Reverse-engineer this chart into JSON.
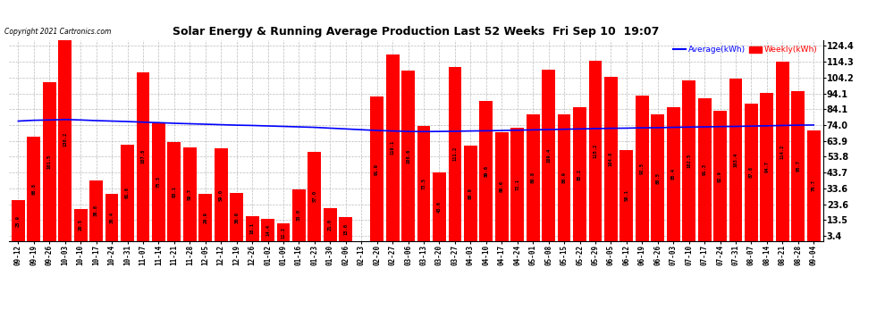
{
  "title": "Solar Energy & Running Average Production Last 52 Weeks  Fri Sep 10  19:07",
  "copyright": "Copyright 2021 Cartronics.com",
  "legend_avg": "Average(kWh)",
  "legend_weekly": "Weekly(kWh)",
  "bar_color": "#FF0000",
  "avg_line_color": "#0000FF",
  "background_color": "#FFFFFF",
  "plot_bg_color": "#FFFFFF",
  "grid_color": "#BBBBBB",
  "yticks": [
    3.4,
    13.5,
    23.6,
    33.6,
    43.7,
    53.8,
    63.9,
    74.0,
    84.1,
    94.1,
    104.2,
    114.3,
    124.4
  ],
  "ylim": [
    0,
    128
  ],
  "categories": [
    "09-12",
    "09-19",
    "09-26",
    "10-03",
    "10-10",
    "10-17",
    "10-24",
    "10-31",
    "11-07",
    "11-14",
    "11-21",
    "11-28",
    "12-05",
    "12-12",
    "12-19",
    "12-26",
    "01-02",
    "01-09",
    "01-16",
    "01-23",
    "01-30",
    "02-06",
    "02-13",
    "02-20",
    "02-27",
    "03-06",
    "03-13",
    "03-20",
    "03-27",
    "04-03",
    "04-10",
    "04-17",
    "04-24",
    "05-01",
    "05-08",
    "05-15",
    "05-22",
    "05-29",
    "06-05",
    "06-12",
    "06-19",
    "06-26",
    "07-03",
    "07-10",
    "07-17",
    "07-24",
    "07-31",
    "08-07",
    "08-14",
    "08-21",
    "08-28",
    "09-04"
  ],
  "weekly_values": [
    25.9,
    66.8,
    101.5,
    130.2,
    20.5,
    38.8,
    30.4,
    61.6,
    107.8,
    75.3,
    63.1,
    59.7,
    29.9,
    59.0,
    30.6,
    16.1,
    14.4,
    11.2,
    33.0,
    57.0,
    21.0,
    15.6,
    0.0,
    91.9,
    119.1,
    108.6,
    73.5,
    43.6,
    111.2,
    60.9,
    89.6,
    69.6,
    72.1,
    80.8,
    109.4,
    80.9,
    85.2,
    115.2,
    104.8,
    58.1,
    92.5,
    80.5,
    85.4,
    102.5,
    91.3,
    82.9,
    103.4,
    87.8,
    94.7,
    114.2,
    95.7,
    70.7
  ],
  "avg_values": [
    76.5,
    77.0,
    77.2,
    77.5,
    77.2,
    76.8,
    76.5,
    76.2,
    75.8,
    75.5,
    75.1,
    74.8,
    74.5,
    74.2,
    73.9,
    73.7,
    73.4,
    73.1,
    72.8,
    72.5,
    72.0,
    71.5,
    71.0,
    70.5,
    70.2,
    69.9,
    69.8,
    69.9,
    70.0,
    70.2,
    70.3,
    70.5,
    70.7,
    70.9,
    71.1,
    71.3,
    71.5,
    71.7,
    71.9,
    72.0,
    72.2,
    72.3,
    72.5,
    72.7,
    72.8,
    73.0,
    73.1,
    73.3,
    73.5,
    73.7,
    73.9,
    74.0
  ],
  "bar_labels": [
    "25.9",
    "66.8",
    "101.5",
    "130.2",
    "20.5",
    "38.8",
    "30.4",
    "61.6",
    "107.8",
    "75.3",
    "63.1",
    "59.7",
    "29.9",
    "59.0",
    "30.6",
    "16.1",
    "14.4",
    "11.2",
    "33.0",
    "57.0",
    "21.0",
    "15.6",
    "0.0",
    "91.9",
    "119.1",
    "108.6",
    "73.5",
    "43.6",
    "111.2",
    "60.9",
    "89.6",
    "69.6",
    "72.1",
    "80.8",
    "109.4",
    "80.9",
    "85.2",
    "115.2",
    "104.8",
    "58.1",
    "92.5",
    "80.5",
    "85.4",
    "102.5",
    "91.3",
    "82.9",
    "103.4",
    "87.8",
    "94.7",
    "114.2",
    "95.7",
    "70.7"
  ],
  "figsize": [
    9.9,
    3.75
  ],
  "dpi": 100
}
